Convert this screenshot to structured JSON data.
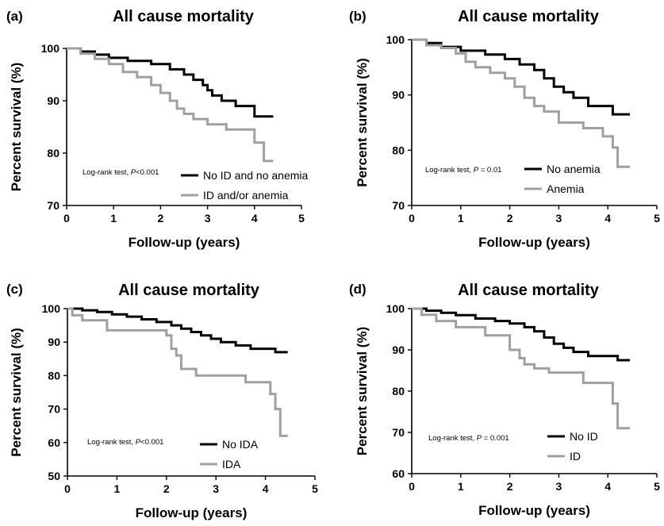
{
  "chart_data": [
    {
      "type": "line",
      "panel": "(a)",
      "title": "All cause mortality",
      "xlabel": "Follow-up (years)",
      "ylabel": "Percent survival (%)",
      "xlim": [
        0,
        5
      ],
      "ylim": [
        70,
        100
      ],
      "xticks": [
        "0",
        "1",
        "2",
        "3",
        "4",
        "5"
      ],
      "yticks": [
        "70",
        "80",
        "90",
        "100"
      ],
      "annotation": {
        "prefix": "Log-rank test, ",
        "p": "P",
        "suffix": "<0.001"
      },
      "legend_position": "bottom-right",
      "series": [
        {
          "name": "No ID and no anemia",
          "color": "#000000",
          "x": [
            0,
            0.3,
            0.3,
            0.6,
            0.6,
            0.9,
            0.9,
            1.3,
            1.3,
            1.8,
            1.8,
            2.2,
            2.2,
            2.5,
            2.5,
            2.7,
            2.7,
            2.9,
            2.9,
            3.0,
            3.0,
            3.1,
            3.1,
            3.3,
            3.3,
            3.6,
            3.6,
            4.0,
            4.0,
            4.4
          ],
          "y": [
            100,
            100,
            99.4,
            99.4,
            98.8,
            98.8,
            98.2,
            98.2,
            97.6,
            97.6,
            97.0,
            97.0,
            96.0,
            96.0,
            95.0,
            95.0,
            94.0,
            94.0,
            93.0,
            93.0,
            92.0,
            92.0,
            91.0,
            91.0,
            90.0,
            90.0,
            89.0,
            89.0,
            87.0,
            87.0
          ]
        },
        {
          "name": "ID and/or anemia",
          "color": "#a0a0a0",
          "x": [
            0,
            0.3,
            0.3,
            0.6,
            0.6,
            0.9,
            0.9,
            1.2,
            1.2,
            1.5,
            1.5,
            1.8,
            1.8,
            2.0,
            2.0,
            2.2,
            2.2,
            2.35,
            2.35,
            2.5,
            2.5,
            2.7,
            2.7,
            3.0,
            3.0,
            3.4,
            3.4,
            4.0,
            4.0,
            4.2,
            4.2,
            4.4
          ],
          "y": [
            100,
            100,
            99.0,
            99.0,
            98.0,
            98.0,
            97.0,
            97.0,
            95.5,
            95.5,
            94.5,
            94.5,
            93.0,
            93.0,
            91.5,
            91.5,
            90.0,
            90.0,
            88.5,
            88.5,
            87.5,
            87.5,
            86.5,
            86.5,
            85.5,
            85.5,
            84.5,
            84.5,
            82.0,
            82.0,
            78.5,
            78.5
          ]
        }
      ]
    },
    {
      "type": "line",
      "panel": "(b)",
      "title": "All cause mortality",
      "xlabel": "Follow-up (years)",
      "ylabel": "Percent survival (%)",
      "xlim": [
        0,
        5
      ],
      "ylim": [
        70,
        100
      ],
      "xticks": [
        "0",
        "1",
        "2",
        "3",
        "4",
        "5"
      ],
      "yticks": [
        "70",
        "80",
        "90",
        "100"
      ],
      "annotation": {
        "prefix": "Log-rank test, ",
        "p": "P",
        "suffix": " = 0.01"
      },
      "legend_position": "bottom-right",
      "series": [
        {
          "name": "No anemia",
          "color": "#000000",
          "x": [
            0,
            0.3,
            0.3,
            0.6,
            0.6,
            1.0,
            1.0,
            1.5,
            1.5,
            1.9,
            1.9,
            2.2,
            2.2,
            2.5,
            2.5,
            2.7,
            2.7,
            2.9,
            2.9,
            3.1,
            3.1,
            3.3,
            3.3,
            3.6,
            3.6,
            4.1,
            4.1,
            4.45
          ],
          "y": [
            100,
            100,
            99.4,
            99.4,
            98.7,
            98.7,
            98.0,
            98.0,
            97.3,
            97.3,
            96.5,
            96.5,
            95.5,
            95.5,
            94.5,
            94.5,
            93.0,
            93.0,
            91.5,
            91.5,
            90.5,
            90.5,
            89.5,
            89.5,
            88.0,
            88.0,
            86.5,
            86.5
          ]
        },
        {
          "name": "Anemia",
          "color": "#a0a0a0",
          "x": [
            0,
            0.3,
            0.3,
            0.6,
            0.6,
            0.9,
            0.9,
            1.1,
            1.1,
            1.3,
            1.3,
            1.6,
            1.6,
            1.9,
            1.9,
            2.1,
            2.1,
            2.3,
            2.3,
            2.5,
            2.5,
            2.7,
            2.7,
            3.0,
            3.0,
            3.5,
            3.5,
            3.9,
            3.9,
            4.1,
            4.1,
            4.2,
            4.2,
            4.45
          ],
          "y": [
            100,
            100,
            99.0,
            99.0,
            98.5,
            98.5,
            97.5,
            97.5,
            96.0,
            96.0,
            95.0,
            95.0,
            94.0,
            94.0,
            93.0,
            93.0,
            91.5,
            91.5,
            89.5,
            89.5,
            88.0,
            88.0,
            87.0,
            87.0,
            85.0,
            85.0,
            84.0,
            84.0,
            82.5,
            82.5,
            80.5,
            80.5,
            77.0,
            77.0
          ]
        }
      ]
    },
    {
      "type": "line",
      "panel": "(c)",
      "title": "All cause mortality",
      "xlabel": "Follow-up (years)",
      "ylabel": "Percent survival (%)",
      "xlim": [
        0,
        5
      ],
      "ylim": [
        50,
        100
      ],
      "xticks": [
        "0",
        "1",
        "2",
        "3",
        "4",
        "5"
      ],
      "yticks": [
        "50",
        "60",
        "70",
        "80",
        "90",
        "100"
      ],
      "annotation": {
        "prefix": "Log-rank test, ",
        "p": "P",
        "suffix": "<0.001"
      },
      "legend_position": "bottom-right",
      "series": [
        {
          "name": "No IDA",
          "color": "#000000",
          "x": [
            0,
            0.3,
            0.3,
            0.6,
            0.6,
            0.9,
            0.9,
            1.2,
            1.2,
            1.5,
            1.5,
            1.8,
            1.8,
            2.1,
            2.1,
            2.3,
            2.3,
            2.5,
            2.5,
            2.7,
            2.7,
            2.9,
            2.9,
            3.1,
            3.1,
            3.4,
            3.4,
            3.7,
            3.7,
            4.2,
            4.2,
            4.45
          ],
          "y": [
            100,
            100,
            99.5,
            99.5,
            99.0,
            99.0,
            98.3,
            98.3,
            97.6,
            97.6,
            96.8,
            96.8,
            96.0,
            96.0,
            95.0,
            95.0,
            94.0,
            94.0,
            93.0,
            93.0,
            92.0,
            92.0,
            91.0,
            91.0,
            90.0,
            90.0,
            89.0,
            89.0,
            88.0,
            88.0,
            87.0,
            87.0
          ]
        },
        {
          "name": "IDA",
          "color": "#a0a0a0",
          "x": [
            0,
            0.1,
            0.1,
            0.3,
            0.3,
            0.8,
            0.8,
            2.0,
            2.0,
            2.1,
            2.1,
            2.2,
            2.2,
            2.3,
            2.3,
            2.6,
            2.6,
            3.6,
            3.6,
            4.1,
            4.1,
            4.2,
            4.2,
            4.3,
            4.3,
            4.45
          ],
          "y": [
            100,
            100,
            98.0,
            98.0,
            96.5,
            96.5,
            93.5,
            93.5,
            92.0,
            92.0,
            88.0,
            88.0,
            86.0,
            86.0,
            82.0,
            82.0,
            80.0,
            80.0,
            78.0,
            78.0,
            74.5,
            74.5,
            70.0,
            70.0,
            62.0,
            62.0
          ]
        }
      ]
    },
    {
      "type": "line",
      "panel": "(d)",
      "title": "All cause mortality",
      "xlabel": "Follow-up (years)",
      "ylabel": "Percent survival (%)",
      "xlim": [
        0,
        5
      ],
      "ylim": [
        60,
        100
      ],
      "xticks": [
        "0",
        "1",
        "2",
        "3",
        "4",
        "5"
      ],
      "yticks": [
        "60",
        "70",
        "80",
        "90",
        "100"
      ],
      "annotation": {
        "prefix": "Log-rank test, ",
        "p": "P",
        "suffix": " = 0.001"
      },
      "legend_position": "bottom-right",
      "series": [
        {
          "name": "No ID",
          "color": "#000000",
          "x": [
            0,
            0.3,
            0.3,
            0.6,
            0.6,
            0.9,
            0.9,
            1.3,
            1.3,
            1.7,
            1.7,
            2.0,
            2.0,
            2.3,
            2.3,
            2.5,
            2.5,
            2.7,
            2.7,
            2.9,
            2.9,
            3.1,
            3.1,
            3.3,
            3.3,
            3.6,
            3.6,
            4.2,
            4.2,
            4.45
          ],
          "y": [
            100,
            100,
            99.5,
            99.5,
            99.0,
            99.0,
            98.4,
            98.4,
            97.6,
            97.6,
            97.0,
            97.0,
            96.4,
            96.4,
            95.5,
            95.5,
            94.5,
            94.5,
            93.0,
            93.0,
            91.5,
            91.5,
            90.5,
            90.5,
            89.5,
            89.5,
            88.5,
            88.5,
            87.5,
            87.5
          ]
        },
        {
          "name": "ID",
          "color": "#a0a0a0",
          "x": [
            0,
            0.2,
            0.2,
            0.5,
            0.5,
            0.9,
            0.9,
            1.5,
            1.5,
            2.0,
            2.0,
            2.2,
            2.2,
            2.3,
            2.3,
            2.5,
            2.5,
            2.8,
            2.8,
            3.5,
            3.5,
            4.1,
            4.1,
            4.2,
            4.2,
            4.45
          ],
          "y": [
            100,
            100,
            98.5,
            98.5,
            97.0,
            97.0,
            95.5,
            95.5,
            93.5,
            93.5,
            90.0,
            90.0,
            88.0,
            88.0,
            86.5,
            86.5,
            85.5,
            85.5,
            84.5,
            84.5,
            82.0,
            82.0,
            77.0,
            77.0,
            71.0,
            71.0
          ]
        }
      ]
    }
  ]
}
